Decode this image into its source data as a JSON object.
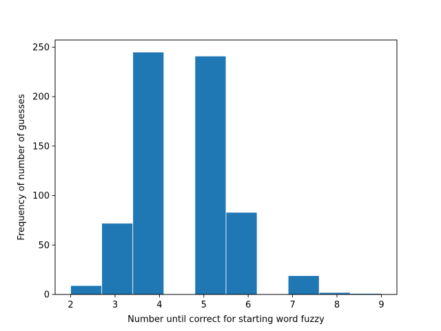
{
  "chart_data": {
    "type": "bar",
    "subtype": "histogram",
    "title": "",
    "xlabel": "Number until correct for starting word fuzzy",
    "ylabel": "Frequency of number of guesses",
    "bins": [
      {
        "start": 2.0,
        "end": 2.7,
        "value": 9
      },
      {
        "start": 2.7,
        "end": 3.4,
        "value": 72
      },
      {
        "start": 3.4,
        "end": 4.1,
        "value": 245
      },
      {
        "start": 4.1,
        "end": 4.8,
        "value": 0
      },
      {
        "start": 4.8,
        "end": 5.5,
        "value": 241
      },
      {
        "start": 5.5,
        "end": 6.2,
        "value": 83
      },
      {
        "start": 6.2,
        "end": 6.9,
        "value": 0
      },
      {
        "start": 6.9,
        "end": 7.6,
        "value": 19
      },
      {
        "start": 7.6,
        "end": 8.3,
        "value": 2
      },
      {
        "start": 8.3,
        "end": 9.0,
        "value": 1
      }
    ],
    "xlim": [
      1.65,
      9.35
    ],
    "ylim": [
      0,
      257.25
    ],
    "xticks": [
      "2",
      "3",
      "4",
      "5",
      "6",
      "7",
      "8",
      "9"
    ],
    "yticks": [
      "0",
      "50",
      "100",
      "150",
      "200",
      "250"
    ],
    "bar_color": "#1f77b4",
    "edge_color": "#ffffff",
    "grid": false,
    "legend": "none"
  }
}
